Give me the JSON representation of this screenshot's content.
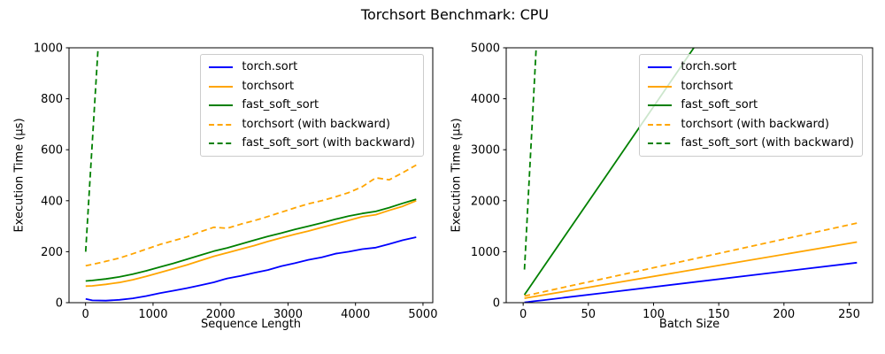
{
  "figure": {
    "title": "Torchsort Benchmark: CPU",
    "background": "#ffffff",
    "spine_color": "#000000"
  },
  "colors": {
    "torch_sort": "#0000ff",
    "torchsort": "#ffa500",
    "fast_soft_sort": "#008000"
  },
  "chart_data": [
    {
      "type": "line",
      "title": "",
      "xlabel": "Sequence Length",
      "ylabel": "Execution Time (µs)",
      "xlim": [
        -245,
        5145
      ],
      "ylim": [
        0,
        1000
      ],
      "xticks": [
        0,
        1000,
        2000,
        3000,
        4000,
        5000
      ],
      "yticks": [
        0,
        200,
        400,
        600,
        800,
        1000
      ],
      "grid": false,
      "legend_position": "upper right",
      "series": [
        {
          "name": "torch.sort",
          "color": "#0000ff",
          "style": "solid",
          "x": [
            1,
            100,
            300,
            500,
            700,
            900,
            1100,
            1300,
            1500,
            1700,
            1900,
            2100,
            2300,
            2500,
            2700,
            2900,
            3100,
            3300,
            3500,
            3700,
            3900,
            4100,
            4300,
            4500,
            4700,
            4900
          ],
          "y": [
            15,
            9,
            8,
            11,
            17,
            26,
            37,
            47,
            57,
            68,
            80,
            95,
            105,
            117,
            128,
            143,
            155,
            168,
            178,
            192,
            200,
            210,
            216,
            230,
            245,
            257
          ]
        },
        {
          "name": "torchsort",
          "color": "#ffa500",
          "style": "solid",
          "x": [
            1,
            100,
            300,
            500,
            700,
            900,
            1100,
            1300,
            1500,
            1700,
            1900,
            2100,
            2300,
            2500,
            2700,
            2900,
            3100,
            3300,
            3500,
            3700,
            3900,
            4100,
            4300,
            4500,
            4700,
            4900
          ],
          "y": [
            65,
            66,
            72,
            79,
            90,
            103,
            118,
            133,
            148,
            165,
            182,
            196,
            210,
            224,
            240,
            254,
            268,
            281,
            295,
            309,
            323,
            337,
            345,
            362,
            378,
            400
          ]
        },
        {
          "name": "fast_soft_sort",
          "color": "#008000",
          "style": "solid",
          "x": [
            1,
            100,
            300,
            500,
            700,
            900,
            1100,
            1300,
            1500,
            1700,
            1900,
            2100,
            2300,
            2500,
            2700,
            2900,
            3100,
            3300,
            3500,
            3700,
            3900,
            4100,
            4300,
            4500,
            4700,
            4900
          ],
          "y": [
            85,
            87,
            93,
            101,
            112,
            125,
            140,
            154,
            170,
            186,
            202,
            215,
            230,
            245,
            260,
            273,
            287,
            300,
            313,
            327,
            340,
            350,
            358,
            373,
            390,
            406
          ]
        },
        {
          "name": "torchsort (with backward)",
          "color": "#ffa500",
          "style": "dashed",
          "x": [
            1,
            100,
            300,
            500,
            700,
            900,
            1100,
            1300,
            1500,
            1700,
            1900,
            2100,
            2300,
            2500,
            2700,
            2900,
            3100,
            3300,
            3500,
            3700,
            3900,
            4100,
            4300,
            4500,
            4700,
            4900
          ],
          "y": [
            145,
            150,
            162,
            175,
            192,
            210,
            228,
            243,
            258,
            278,
            296,
            292,
            308,
            322,
            338,
            355,
            372,
            388,
            400,
            415,
            432,
            455,
            490,
            482,
            510,
            540
          ]
        },
        {
          "name": "fast_soft_sort (with backward)",
          "color": "#008000",
          "style": "dashed",
          "x": [
            1,
            50,
            100,
            150,
            200,
            250
          ],
          "y": [
            200,
            415,
            630,
            845,
            1060,
            1275
          ]
        }
      ]
    },
    {
      "type": "line",
      "title": "",
      "xlabel": "Batch Size",
      "ylabel": "Execution Time (µs)",
      "xlim": [
        -13,
        268
      ],
      "ylim": [
        0,
        5000
      ],
      "xticks": [
        0,
        50,
        100,
        150,
        200,
        250
      ],
      "yticks": [
        0,
        1000,
        2000,
        3000,
        4000,
        5000
      ],
      "grid": false,
      "legend_position": "upper right",
      "series": [
        {
          "name": "torch.sort",
          "color": "#0000ff",
          "style": "solid",
          "x": [
            1,
            2,
            4,
            8,
            16,
            32,
            64,
            128,
            256
          ],
          "y": [
            5,
            8,
            14,
            27,
            51,
            100,
            198,
            394,
            785
          ]
        },
        {
          "name": "torchsort",
          "color": "#ffa500",
          "style": "solid",
          "x": [
            1,
            2,
            4,
            8,
            16,
            32,
            64,
            128,
            256
          ],
          "y": [
            86,
            91,
            99,
            117,
            151,
            221,
            359,
            636,
            1190
          ]
        },
        {
          "name": "fast_soft_sort",
          "color": "#008000",
          "style": "solid",
          "x": [
            1,
            2,
            4,
            8,
            16,
            32,
            64,
            128,
            256
          ],
          "y": [
            154,
            192,
            266,
            415,
            713,
            1310,
            2500,
            4890,
            9660
          ]
        },
        {
          "name": "torchsort (with backward)",
          "color": "#ffa500",
          "style": "dashed",
          "x": [
            1,
            2,
            4,
            8,
            16,
            32,
            64,
            128,
            256
          ],
          "y": [
            132,
            137,
            148,
            171,
            216,
            305,
            484,
            842,
            1560
          ]
        },
        {
          "name": "fast_soft_sort (with backward)",
          "color": "#008000",
          "style": "dashed",
          "x": [
            1,
            2,
            4,
            8,
            12
          ],
          "y": [
            650,
            1130,
            2100,
            4030,
            5970
          ]
        }
      ]
    }
  ]
}
